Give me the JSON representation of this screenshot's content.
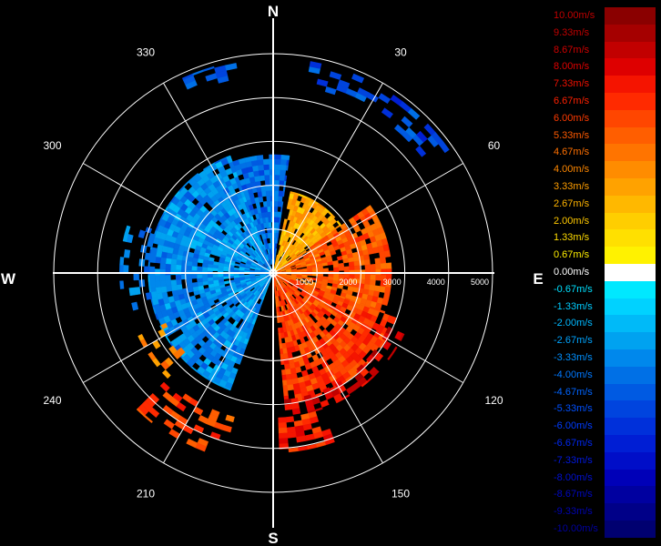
{
  "chart_data": {
    "type": "polar-radar",
    "compass": {
      "north": "N",
      "east": "E",
      "south": "S",
      "west": "W"
    },
    "azimuth_labels": [
      {
        "deg": 30,
        "label": "30"
      },
      {
        "deg": 60,
        "label": "60"
      },
      {
        "deg": 120,
        "label": "120"
      },
      {
        "deg": 150,
        "label": "150"
      },
      {
        "deg": 210,
        "label": "210"
      },
      {
        "deg": 240,
        "label": "240"
      },
      {
        "deg": 300,
        "label": "300"
      },
      {
        "deg": 330,
        "label": "330"
      }
    ],
    "range_rings": [
      1000,
      2000,
      3000,
      4000,
      5000
    ],
    "range_labels": [
      {
        "value": 1000,
        "label": "1000"
      },
      {
        "value": 2000,
        "label": "2000"
      },
      {
        "value": 3000,
        "label": "3000"
      },
      {
        "value": 4000,
        "label": "4000"
      },
      {
        "value": 5000,
        "label": "5000"
      }
    ],
    "max_range": 5000,
    "velocity_range": [
      -10,
      10
    ],
    "blobs": [
      {
        "name": "approaching-west",
        "az_from": 200,
        "az_to": 340,
        "r_from": 60,
        "r_to": 2850,
        "velocity": -3.0,
        "density": 0.92
      },
      {
        "name": "approaching-north",
        "az_from": 340,
        "az_to": 368,
        "r_from": 200,
        "r_to": 2700,
        "velocity": -4.0,
        "density": 0.9
      },
      {
        "name": "receding-core-ne",
        "az_from": 12,
        "az_to": 55,
        "r_from": 60,
        "r_to": 1900,
        "velocity": 2.6,
        "density": 0.9
      },
      {
        "name": "receding-core-e",
        "az_from": 55,
        "az_to": 110,
        "r_from": 60,
        "r_to": 2700,
        "velocity": 5.0,
        "density": 0.88
      },
      {
        "name": "receding-core-se",
        "az_from": 110,
        "az_to": 175,
        "r_from": 60,
        "r_to": 3000,
        "velocity": 5.8,
        "density": 0.9
      },
      {
        "name": "receding-outer-se",
        "az_from": 115,
        "az_to": 175,
        "r_from": 2900,
        "r_to": 3300,
        "velocity": 7.3,
        "density": 0.55
      },
      {
        "name": "far-ring-ne",
        "az_from": 10,
        "az_to": 55,
        "r_from": 4300,
        "r_to": 4900,
        "velocity": -4.7,
        "density": 0.35
      },
      {
        "name": "far-ring-nw",
        "az_from": 335,
        "az_to": 350,
        "r_from": 4500,
        "r_to": 4900,
        "velocity": -4.0,
        "density": 0.35
      },
      {
        "name": "far-arc-ssw",
        "az_from": 195,
        "az_to": 225,
        "r_from": 3400,
        "r_to": 4400,
        "velocity": 5.3,
        "density": 0.45
      },
      {
        "name": "far-arc-sw",
        "az_from": 225,
        "az_to": 245,
        "r_from": 2700,
        "r_to": 3400,
        "velocity": 3.3,
        "density": 0.45
      },
      {
        "name": "far-arc-sse",
        "az_from": 160,
        "az_to": 178,
        "r_from": 3300,
        "r_to": 4100,
        "velocity": 6.0,
        "density": 0.45
      },
      {
        "name": "west-fringe",
        "az_from": 255,
        "az_to": 290,
        "r_from": 2700,
        "r_to": 3500,
        "velocity": -3.3,
        "density": 0.35
      }
    ],
    "legend": [
      {
        "label": "10.00m/s",
        "color": "#8a0000",
        "text_color": "#c00000"
      },
      {
        "label": "9.33m/s",
        "color": "#a50000",
        "text_color": "#c00000"
      },
      {
        "label": "8.67m/s",
        "color": "#c20000",
        "text_color": "#d00000"
      },
      {
        "label": "8.00m/s",
        "color": "#de0000",
        "text_color": "#e00000"
      },
      {
        "label": "7.33m/s",
        "color": "#f51400",
        "text_color": "#f01000"
      },
      {
        "label": "6.67m/s",
        "color": "#ff2a00",
        "text_color": "#ff2000"
      },
      {
        "label": "6.00m/s",
        "color": "#ff4600",
        "text_color": "#ff3a00"
      },
      {
        "label": "5.33m/s",
        "color": "#ff5e00",
        "text_color": "#ff5a00"
      },
      {
        "label": "4.67m/s",
        "color": "#ff7400",
        "text_color": "#ff7000"
      },
      {
        "label": "4.00m/s",
        "color": "#ff8c00",
        "text_color": "#ff8800"
      },
      {
        "label": "3.33m/s",
        "color": "#ffa200",
        "text_color": "#ff9e00"
      },
      {
        "label": "2.67m/s",
        "color": "#ffb800",
        "text_color": "#ffb400"
      },
      {
        "label": "2.00m/s",
        "color": "#ffce00",
        "text_color": "#ffc800"
      },
      {
        "label": "1.33m/s",
        "color": "#ffe000",
        "text_color": "#ffdc00"
      },
      {
        "label": "0.67m/s",
        "color": "#fff200",
        "text_color": "#ffee00"
      },
      {
        "label": "0.00m/s",
        "color": "#ffffff",
        "text_color": "#ffffff"
      },
      {
        "label": "-0.67m/s",
        "color": "#00e8ff",
        "text_color": "#00e0ff"
      },
      {
        "label": "-1.33m/s",
        "color": "#00d2ff",
        "text_color": "#00ccff"
      },
      {
        "label": "-2.00m/s",
        "color": "#00baf8",
        "text_color": "#00b8ff"
      },
      {
        "label": "-2.67m/s",
        "color": "#00a2f0",
        "text_color": "#00a4ff"
      },
      {
        "label": "-3.33m/s",
        "color": "#0088ec",
        "text_color": "#0090ff"
      },
      {
        "label": "-4.00m/s",
        "color": "#0070e6",
        "text_color": "#0078ff"
      },
      {
        "label": "-4.67m/s",
        "color": "#005ae2",
        "text_color": "#0064ff"
      },
      {
        "label": "-5.33m/s",
        "color": "#0044de",
        "text_color": "#0050ff"
      },
      {
        "label": "-6.00m/s",
        "color": "#0030da",
        "text_color": "#003cff"
      },
      {
        "label": "-6.67m/s",
        "color": "#001ed4",
        "text_color": "#0028f0"
      },
      {
        "label": "-7.33m/s",
        "color": "#000ec8",
        "text_color": "#0018e0"
      },
      {
        "label": "-8.00m/s",
        "color": "#0000b8",
        "text_color": "#0010d0"
      },
      {
        "label": "-8.67m/s",
        "color": "#0000a0",
        "text_color": "#0008c0"
      },
      {
        "label": "-9.33m/s",
        "color": "#000088",
        "text_color": "#0004b0"
      },
      {
        "label": "-10.00m/s",
        "color": "#000070",
        "text_color": "#0000a0"
      }
    ]
  }
}
